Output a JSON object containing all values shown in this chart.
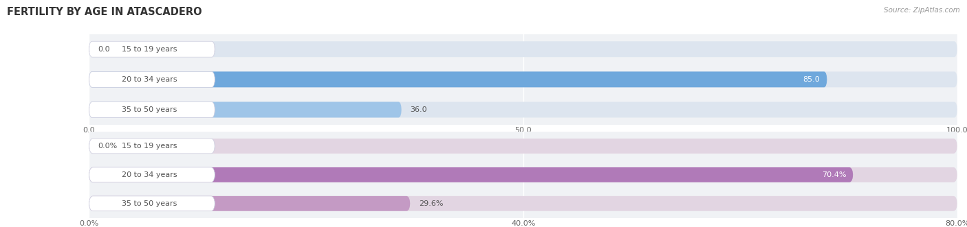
{
  "title": "FERTILITY BY AGE IN ATASCADERO",
  "source": "Source: ZipAtlas.com",
  "top_chart": {
    "categories": [
      "15 to 19 years",
      "20 to 34 years",
      "35 to 50 years"
    ],
    "values": [
      0.0,
      85.0,
      36.0
    ],
    "value_labels": [
      "0.0",
      "85.0",
      "36.0"
    ],
    "xlim": [
      0,
      100
    ],
    "xticks": [
      0.0,
      50.0,
      100.0
    ],
    "xtick_labels": [
      "0.0",
      "50.0",
      "100.0"
    ],
    "bar_colors": [
      "#a8c4e0",
      "#6fa8dc",
      "#9fc5e8"
    ],
    "bar_bg_color": "#dde5ef"
  },
  "bottom_chart": {
    "categories": [
      "15 to 19 years",
      "20 to 34 years",
      "35 to 50 years"
    ],
    "values": [
      0.0,
      70.4,
      29.6
    ],
    "value_labels": [
      "0.0%",
      "70.4%",
      "29.6%"
    ],
    "xlim": [
      0,
      80
    ],
    "xticks": [
      0.0,
      40.0,
      80.0
    ],
    "xtick_labels": [
      "0.0%",
      "40.0%",
      "80.0%"
    ],
    "bar_colors": [
      "#c9a8c9",
      "#b07ab8",
      "#c49ac4"
    ],
    "bar_bg_color": "#e2d5e2"
  },
  "title_color": "#333333",
  "title_fontsize": 10.5,
  "label_fontsize": 8,
  "value_fontsize": 8,
  "tick_fontsize": 8,
  "source_color": "#999999",
  "source_fontsize": 7.5
}
